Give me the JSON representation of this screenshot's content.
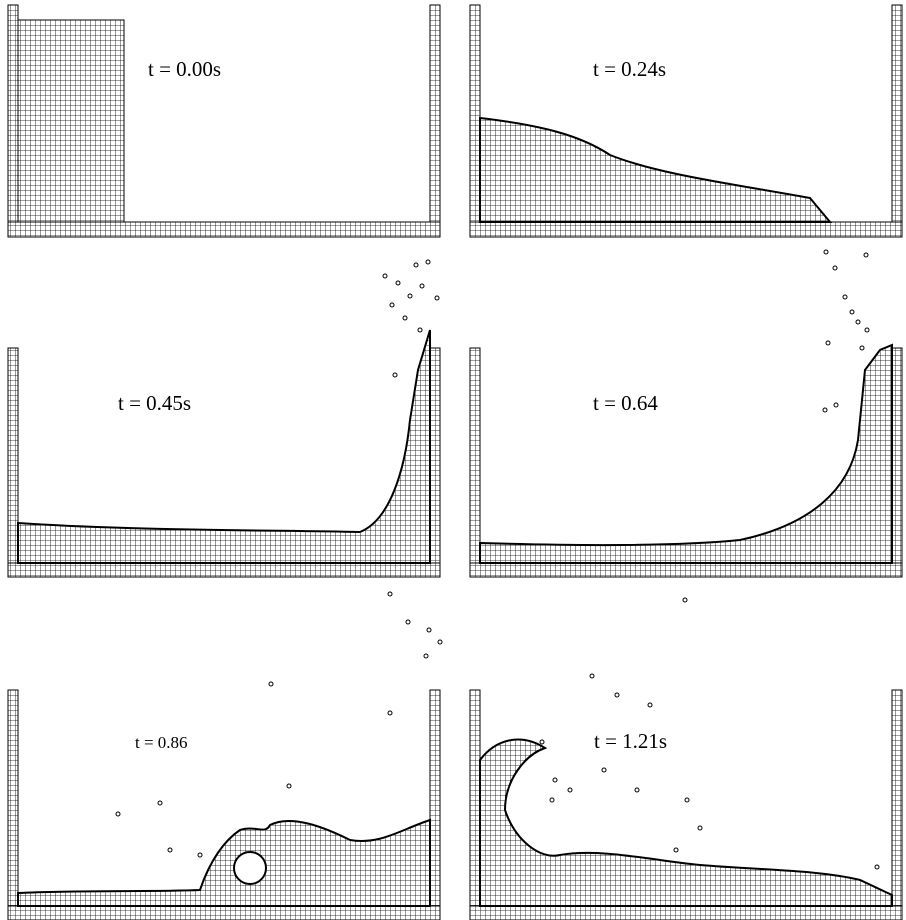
{
  "panels": [
    {
      "id": "p1",
      "time_label": "t = 0.00s"
    },
    {
      "id": "p2",
      "time_label": "t = 0.24s"
    },
    {
      "id": "p3",
      "time_label": "t = 0.45s"
    },
    {
      "id": "p4",
      "time_label": "t = 0.64"
    },
    {
      "id": "p5",
      "time_label": "t = 0.86"
    },
    {
      "id": "p6",
      "time_label": "t = 1.21s"
    }
  ],
  "colors": {
    "mesh": "#000000",
    "background": "#ffffff"
  }
}
